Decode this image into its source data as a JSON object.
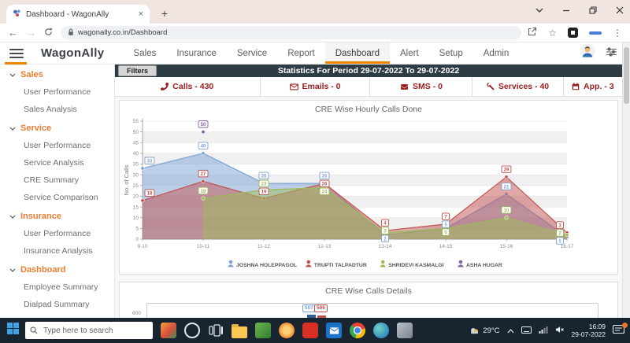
{
  "browser": {
    "tab_title": "Dashboard - WagonAlly",
    "url": "wagonally.co.in/Dashboard"
  },
  "header": {
    "brand": "WagonAlly",
    "nav": [
      "Sales",
      "Insurance",
      "Service",
      "Report",
      "Dashboard",
      "Alert",
      "Setup",
      "Admin"
    ],
    "active_nav": "Dashboard"
  },
  "sidebar": {
    "sections": [
      {
        "label": "Sales",
        "items": [
          "User Performance",
          "Sales Analysis"
        ]
      },
      {
        "label": "Service",
        "items": [
          "User Performance",
          "Service Analysis",
          "CRE Summary",
          "Service Comparison"
        ]
      },
      {
        "label": "Insurance",
        "items": [
          "User Performance",
          "Insurance Analysis"
        ]
      },
      {
        "label": "Dashboard",
        "items": [
          "Employee Summary",
          "Dialpad Summary"
        ]
      }
    ]
  },
  "toolbar": {
    "filters_label": "Filters",
    "statistics_title": "Statistics For Period 29-07-2022 To 29-07-2022"
  },
  "stats": {
    "items": [
      {
        "icon": "phone-icon",
        "label": "Calls - 430"
      },
      {
        "icon": "email-icon",
        "label": "Emails - 0"
      },
      {
        "icon": "sms-icon",
        "label": "SMS - 0"
      },
      {
        "icon": "services-icon",
        "label": "Services - 40"
      },
      {
        "icon": "appointments-icon",
        "label": "App. - 3"
      }
    ]
  },
  "chart_data": [
    {
      "type": "area",
      "title": "CRE Wise Hourly Calls Done",
      "xlabel": "",
      "ylabel": "No. of Calls",
      "ylim": [
        0,
        55
      ],
      "y_tick_step": 5,
      "grid": true,
      "legend_position": "bottom",
      "categories": [
        "9-10",
        "10-11",
        "11-12",
        "12-13",
        "13-14",
        "14-15",
        "15-16",
        "16-17"
      ],
      "series": [
        {
          "name": "JOSHNA HOLEPPAGOL",
          "color": "#7ba2d4",
          "values": [
            33,
            40,
            26,
            26,
            2,
            5,
            21,
            1
          ]
        },
        {
          "name": "TRUPTI TALPADTUR",
          "color": "#c0504d",
          "values": [
            18,
            27,
            19,
            26,
            4,
            7,
            29,
            3
          ]
        },
        {
          "name": "SHRIDEVI KASMALGI",
          "color": "#9bbb59",
          "values": [
            null,
            19,
            23,
            24,
            3,
            5,
            10,
            2
          ]
        },
        {
          "name": "ASHA HUGAR",
          "color": "#8064a2",
          "values": [
            null,
            50,
            null,
            null,
            null,
            null,
            null,
            null
          ]
        }
      ]
    },
    {
      "type": "bar",
      "title": "CRE Wise Calls Details",
      "note": "partially visible, cut off by taskbar",
      "visible_y_tick": "600",
      "visible_labels": [
        {
          "value": "507",
          "color": "#7ba2d4"
        },
        {
          "value": "506",
          "color": "#c0504d"
        }
      ]
    }
  ],
  "taskbar": {
    "search_placeholder": "Type here to search",
    "temperature": "29°C",
    "time": "16:09",
    "date": "29-07-2022"
  }
}
